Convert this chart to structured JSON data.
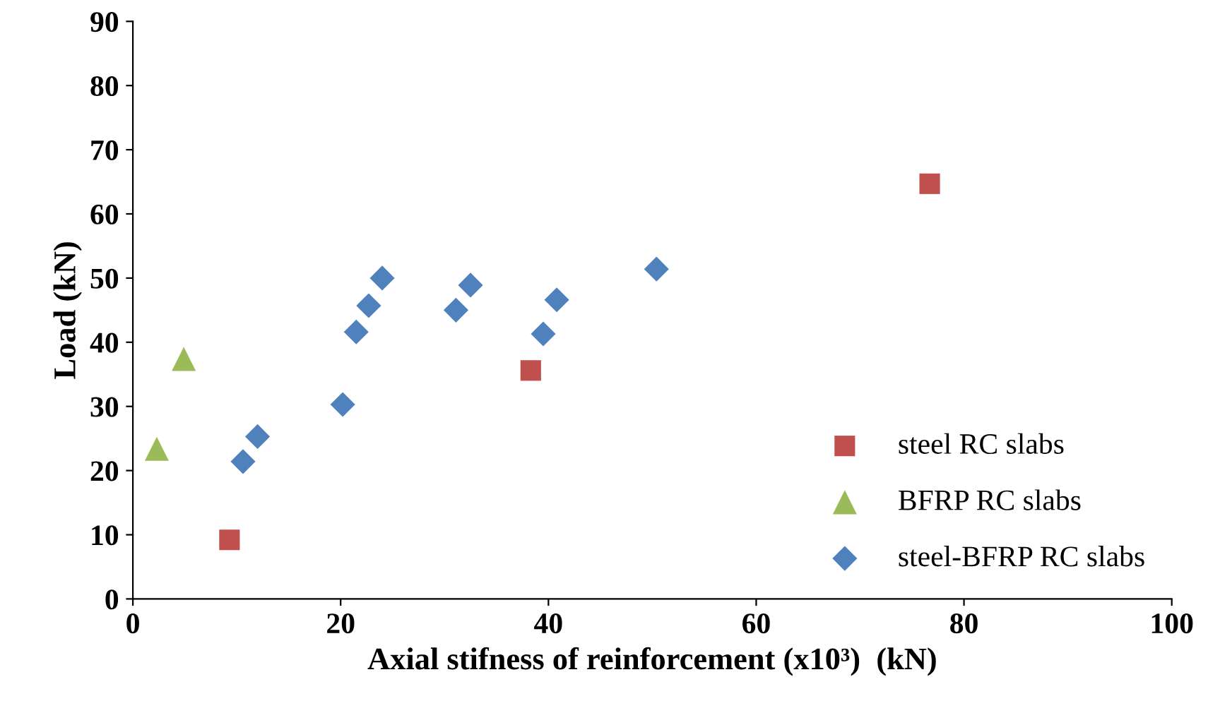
{
  "chart_data": {
    "type": "scatter",
    "xlabel": "Axial stifness of reinforcement (x10³)  (kN)",
    "ylabel": "Load (kN)",
    "xlim": [
      0,
      100
    ],
    "xticks": [
      0,
      20,
      40,
      60,
      80,
      100
    ],
    "ylim": [
      0,
      90
    ],
    "yticks": [
      0,
      10,
      20,
      30,
      40,
      50,
      60,
      70,
      80,
      90
    ],
    "grid": false,
    "legend": "lower right",
    "series": [
      {
        "name": "steel RC slabs",
        "color": "#c0504d",
        "marker": "square",
        "x": [
          9.3,
          38.3,
          76.7
        ],
        "values": [
          9.2,
          35.6,
          64.7
        ]
      },
      {
        "name": "BFRP RC slabs",
        "color": "#9bbb59",
        "marker": "triangle",
        "x": [
          2.3,
          4.9
        ],
        "values": [
          23.4,
          37.4
        ]
      },
      {
        "name": "steel-BFRP RC slabs",
        "color": "#4f81bd",
        "marker": "diamond",
        "x": [
          10.6,
          12.0,
          20.2,
          21.5,
          22.7,
          24.0,
          31.1,
          32.5,
          39.5,
          40.8,
          50.4
        ],
        "values": [
          21.4,
          25.3,
          30.3,
          41.6,
          45.7,
          50.0,
          45.0,
          48.9,
          41.3,
          46.6,
          51.4
        ]
      }
    ]
  }
}
